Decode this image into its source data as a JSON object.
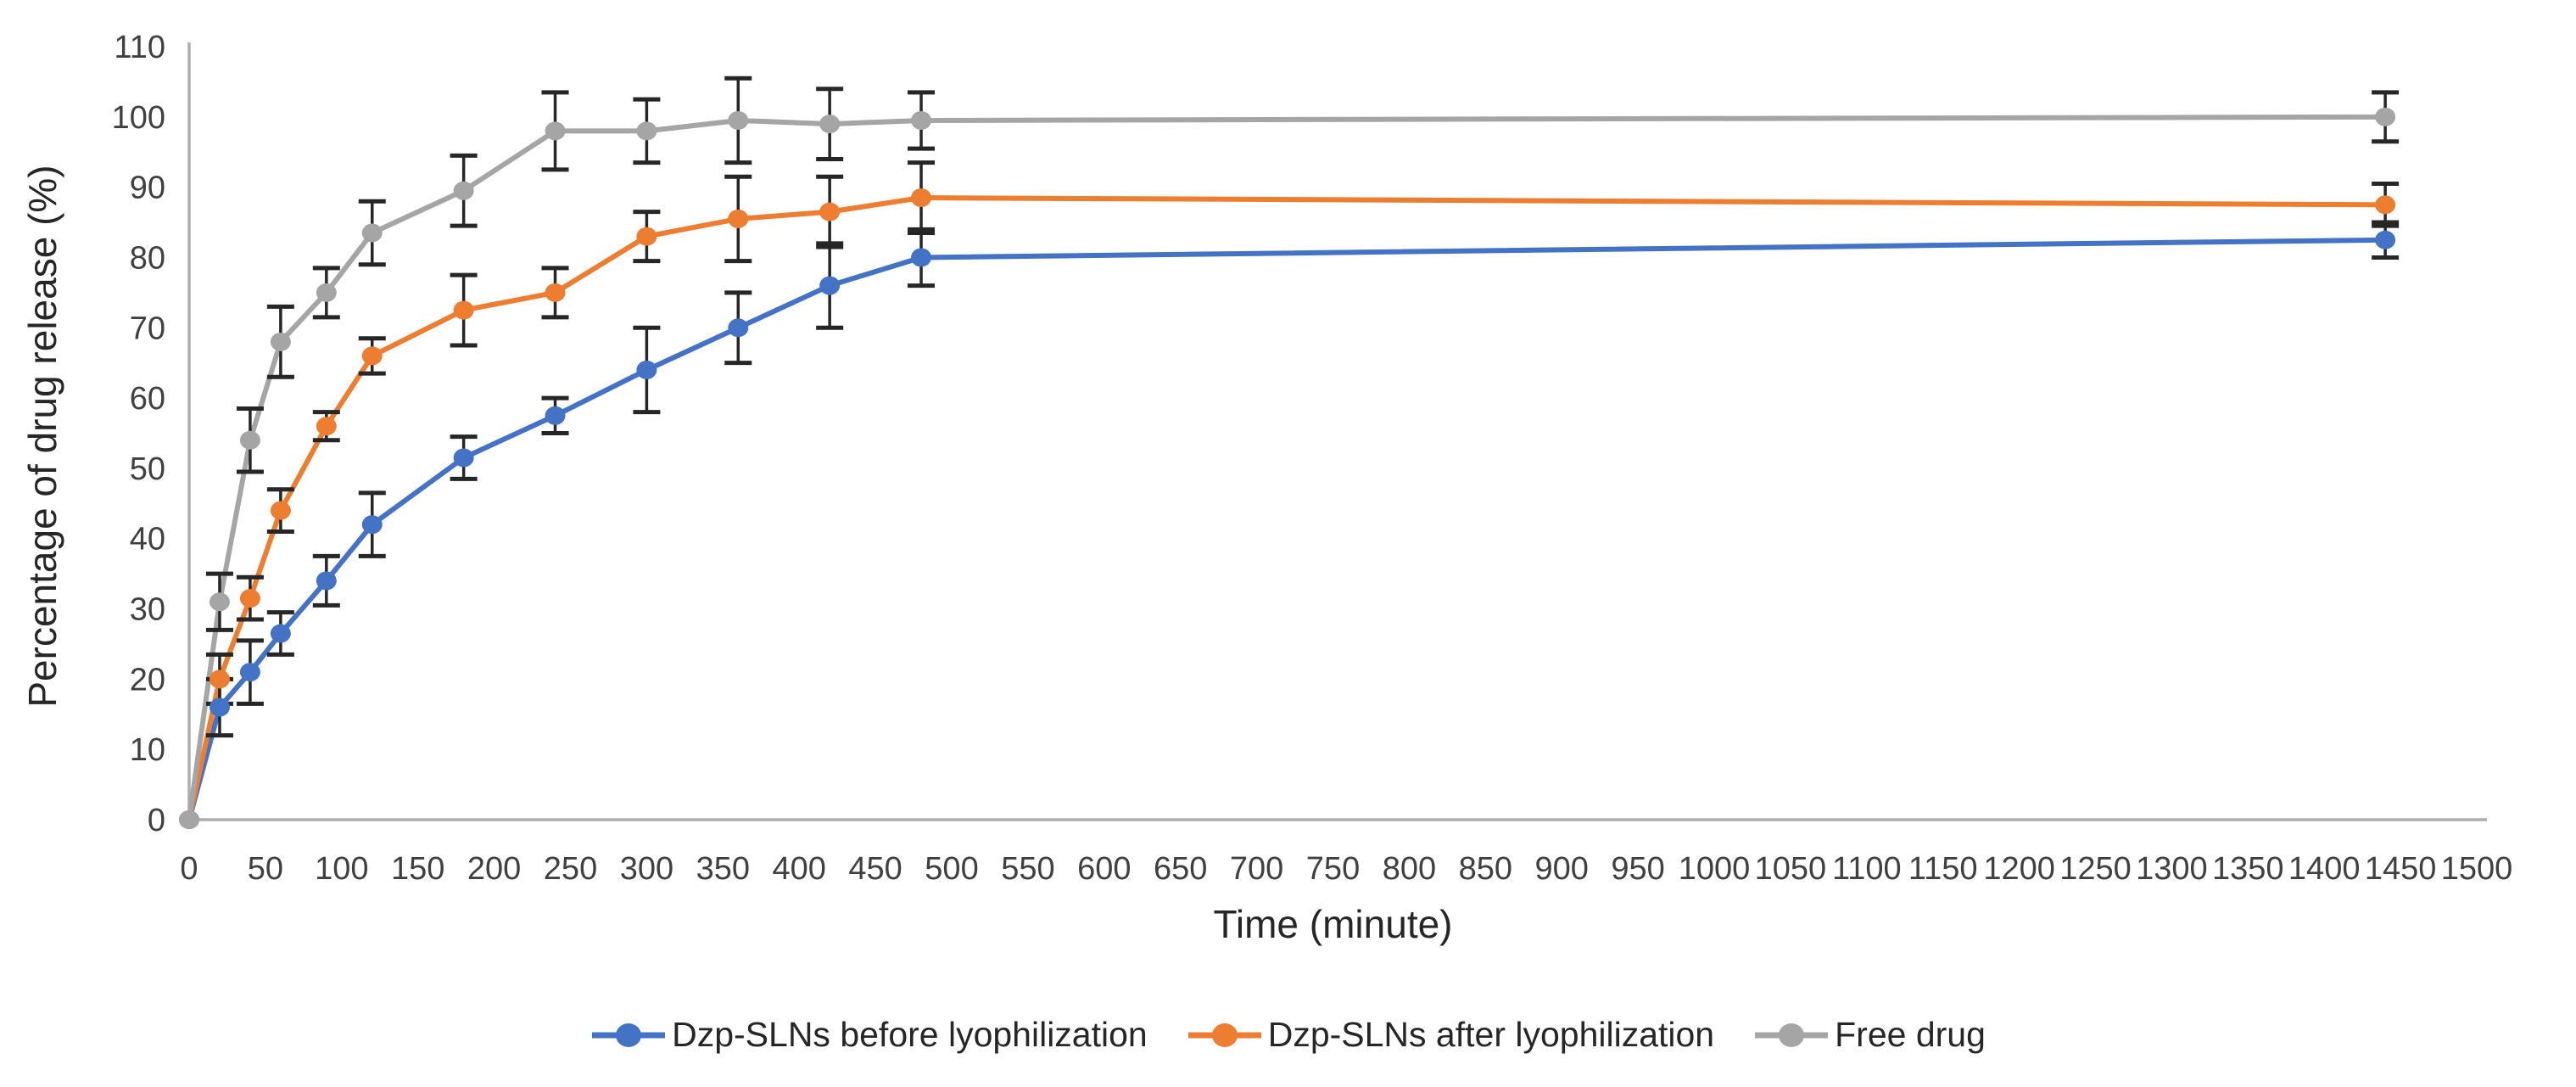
{
  "figure": {
    "background_color": "#ffffff"
  },
  "chart_data": {
    "type": "line",
    "title": "",
    "xlabel": "Time (minute)",
    "ylabel": "Percentage of drug release (%)",
    "x": [
      0,
      20,
      40,
      60,
      90,
      120,
      180,
      240,
      300,
      360,
      420,
      480,
      1440
    ],
    "series": [
      {
        "name": "Dzp-SLNs before lyophilization",
        "color": "#4472C4",
        "values": [
          0,
          16,
          21,
          26.5,
          34,
          42,
          51.5,
          57.5,
          64,
          70,
          76,
          80,
          82.5
        ],
        "errors": [
          0,
          4,
          4.5,
          3,
          3.5,
          4.5,
          3,
          2.5,
          6,
          5,
          6,
          4,
          2.5
        ]
      },
      {
        "name": "Dzp-SLNs after lyophilization",
        "color": "#ED7D31",
        "values": [
          0,
          20,
          31.5,
          44,
          56,
          66,
          72.5,
          75,
          83,
          85.5,
          86.5,
          88.5,
          87.5
        ],
        "errors": [
          0,
          3.5,
          3,
          3,
          2,
          2.5,
          5,
          3.5,
          3.5,
          6,
          5,
          5,
          3
        ]
      },
      {
        "name": "Free drug",
        "color": "#A5A5A5",
        "values": [
          0,
          31,
          54,
          68,
          75,
          83.5,
          89.5,
          98,
          98,
          99.5,
          99,
          99.5,
          100
        ],
        "errors": [
          0,
          4,
          4.5,
          5,
          3.5,
          4.5,
          5,
          5.5,
          4.5,
          6,
          5,
          4,
          3.5
        ]
      }
    ],
    "xlim": [
      0,
      1500
    ],
    "ylim": [
      0,
      110
    ],
    "xticks": [
      0,
      50,
      100,
      150,
      200,
      250,
      300,
      350,
      400,
      450,
      500,
      550,
      600,
      650,
      700,
      750,
      800,
      850,
      900,
      950,
      1000,
      1050,
      1100,
      1150,
      1200,
      1250,
      1300,
      1350,
      1400,
      1450,
      1500
    ],
    "yticks": [
      0,
      10,
      20,
      30,
      40,
      50,
      60,
      70,
      80,
      90,
      100,
      110
    ],
    "grid": false,
    "legend_position": "bottom",
    "has_error_bars": true,
    "error_bar_color": "#262626",
    "axis_line_color": "#ADADAD",
    "tick_label_color": "#404040",
    "axis_title_color": "#262626"
  }
}
